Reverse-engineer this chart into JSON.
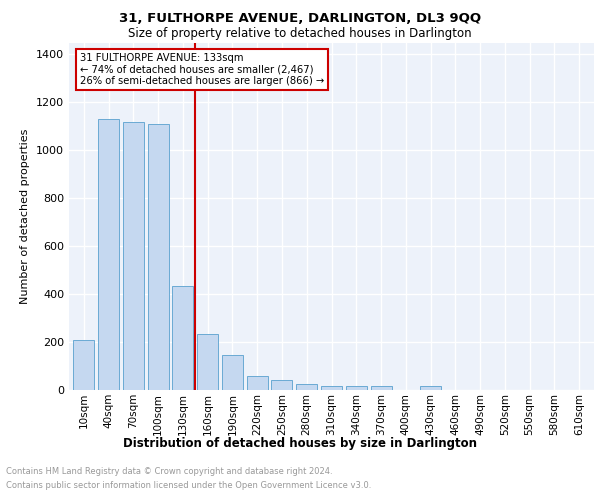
{
  "title": "31, FULTHORPE AVENUE, DARLINGTON, DL3 9QQ",
  "subtitle": "Size of property relative to detached houses in Darlington",
  "xlabel": "Distribution of detached houses by size in Darlington",
  "ylabel": "Number of detached properties",
  "bar_labels": [
    "10sqm",
    "40sqm",
    "70sqm",
    "100sqm",
    "130sqm",
    "160sqm",
    "190sqm",
    "220sqm",
    "250sqm",
    "280sqm",
    "310sqm",
    "340sqm",
    "370sqm",
    "400sqm",
    "430sqm",
    "460sqm",
    "490sqm",
    "520sqm",
    "550sqm",
    "580sqm",
    "610sqm"
  ],
  "bar_values": [
    210,
    1130,
    1120,
    1110,
    435,
    235,
    145,
    60,
    40,
    25,
    15,
    15,
    15,
    0,
    15,
    0,
    0,
    0,
    0,
    0,
    0
  ],
  "bar_color": "#c5d8f0",
  "bar_edge_color": "#6aaad4",
  "property_line_x": 4,
  "annotation_title": "31 FULTHORPE AVENUE: 133sqm",
  "annotation_line1": "← 74% of detached houses are smaller (2,467)",
  "annotation_line2": "26% of semi-detached houses are larger (866) →",
  "annotation_box_color": "#ffffff",
  "annotation_box_edge_color": "#cc0000",
  "vline_color": "#cc0000",
  "ylim": [
    0,
    1450
  ],
  "yticks": [
    0,
    200,
    400,
    600,
    800,
    1000,
    1200,
    1400
  ],
  "footer_line1": "Contains HM Land Registry data © Crown copyright and database right 2024.",
  "footer_line2": "Contains public sector information licensed under the Open Government Licence v3.0.",
  "plot_background": "#edf2fa"
}
